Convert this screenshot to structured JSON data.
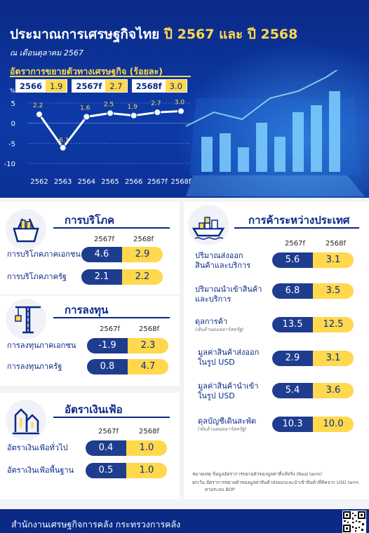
{
  "header": {
    "title_main": "ประมาณการเศรษฐกิจไทย",
    "title_years": "ปี 2567 และ ปี 2568",
    "subtitle": "ณ เดือนตุลาคม 2567"
  },
  "growth": {
    "title": "อัตราการขยายตัวทางเศรษฐกิจ (ร้อยละ)",
    "highlights": [
      {
        "key": "2566",
        "value": "1.9"
      },
      {
        "key": "2567f",
        "value": "2.7"
      },
      {
        "key": "2568f",
        "value": "3.0"
      }
    ]
  },
  "chart_data": {
    "type": "line",
    "title": "อัตราการขยายตัวทางเศรษฐกิจ (ร้อยละ)",
    "ylabel": "%",
    "categories": [
      "2562",
      "2563",
      "2564",
      "2565",
      "2566",
      "2567f",
      "2568f"
    ],
    "values": [
      2.2,
      -6.1,
      1.6,
      2.5,
      1.9,
      2.7,
      3.0
    ],
    "value_labels": [
      "2.2",
      "-6.1",
      "1.6",
      "2.5",
      "1.9",
      "2.7",
      "3.0"
    ],
    "yticks": [
      "5",
      "0",
      "-5",
      "-10"
    ],
    "ylim": [
      -10,
      5
    ],
    "grid": true
  },
  "columns": {
    "c1": "2567f",
    "c2": "2568f"
  },
  "consumption": {
    "title": "การบริโภค",
    "rows": [
      {
        "label": "การบริโภคภาคเอกชน",
        "v1": "4.6",
        "v2": "2.9"
      },
      {
        "label": "การบริโภคภาครัฐ",
        "v1": "2.1",
        "v2": "2.2"
      }
    ]
  },
  "investment": {
    "title": "การลงทุน",
    "rows": [
      {
        "label": "การลงทุนภาคเอกชน",
        "v1": "-1.9",
        "v2": "2.3"
      },
      {
        "label": "การลงทุนภาครัฐ",
        "v1": "0.8",
        "v2": "4.7"
      }
    ]
  },
  "inflation": {
    "title": "อัตราเงินเฟ้อ",
    "rows": [
      {
        "label": "อัตราเงินเฟ้อทั่วไป",
        "v1": "0.4",
        "v2": "1.0"
      },
      {
        "label": "อัตราเงินเฟ้อพื้นฐาน",
        "v1": "0.5",
        "v2": "1.0"
      }
    ]
  },
  "trade": {
    "title": "การค้าระหว่างประเทศ",
    "rows": [
      {
        "label1": "ปริมาณส่งออก",
        "label2": "สินค้าและบริการ",
        "sub": "",
        "v1": "5.6",
        "v2": "3.1"
      },
      {
        "label1": "ปริมาณนำเข้าสินค้า",
        "label2": "และบริการ",
        "sub": "",
        "v1": "6.8",
        "v2": "3.5"
      },
      {
        "label1": "ดุลการค้า",
        "label2": "",
        "sub": "(พันล้านดอลลาร์สหรัฐ)",
        "v1": "13.5",
        "v2": "12.5"
      },
      {
        "label1": "มูลค่าสินค้าส่งออก",
        "label2": "ในรูป USD",
        "sub": "",
        "v1": "2.9",
        "v2": "3.1"
      },
      {
        "label1": "มูลค่าสินค้านำเข้า",
        "label2": "ในรูป USD",
        "sub": "",
        "v1": "5.4",
        "v2": "3.6"
      },
      {
        "label1": "ดุลบัญชีเดินสะพัด",
        "label2": "",
        "sub": "(พันล้านดอลลาร์สหรัฐ)",
        "v1": "10.3",
        "v2": "10.0"
      }
    ]
  },
  "notes": {
    "n1": "หมายเหตุ ข้อมูลอัตราการขยายตัวของมูลค่าที่แท้จริง (Real term)",
    "n2": "ยกเว้น อัตราการขยายตัวของมูลค่าสินค้าส่งออกและนำเข้าสินค้าที่คิดจาก USD term",
    "n3": "ตามระบบ BOP"
  },
  "footer": {
    "text": "สำนักงานเศรษฐกิจการคลัง กระทรวงการคลัง"
  },
  "colors": {
    "navy": "#0a2a86",
    "yellow": "#ffd84d",
    "pill_navy": "#1e3d8f"
  }
}
